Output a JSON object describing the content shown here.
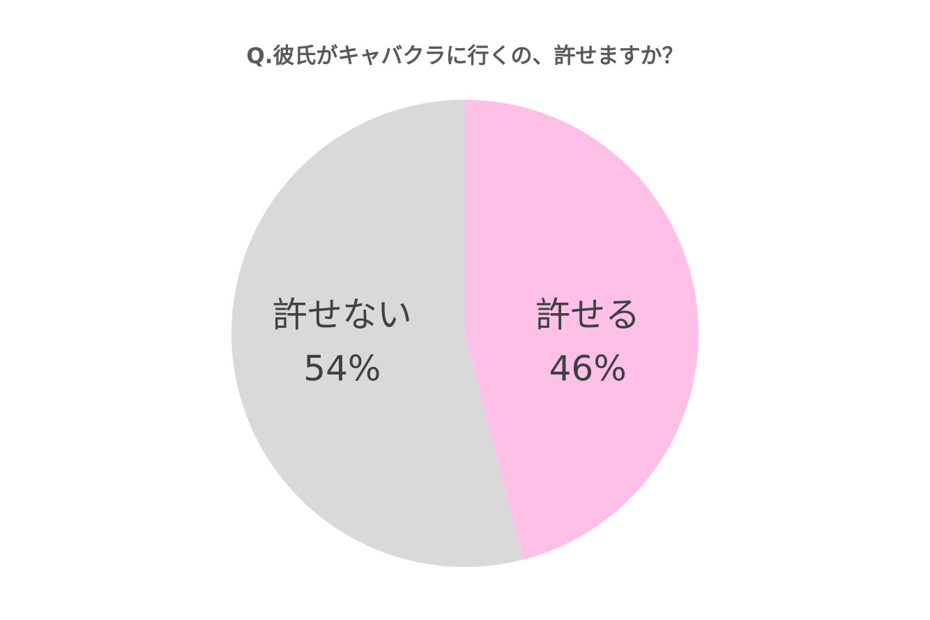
{
  "chart_data": {
    "type": "pie",
    "title": "Q.彼氏がキャバクラに行くの、許せますか？",
    "categories": [
      "許せる",
      "許せない"
    ],
    "values": [
      46,
      54
    ],
    "value_labels": [
      "46%",
      "54%"
    ],
    "colors": [
      "#ffc0e8",
      "#d9d9d9"
    ]
  }
}
